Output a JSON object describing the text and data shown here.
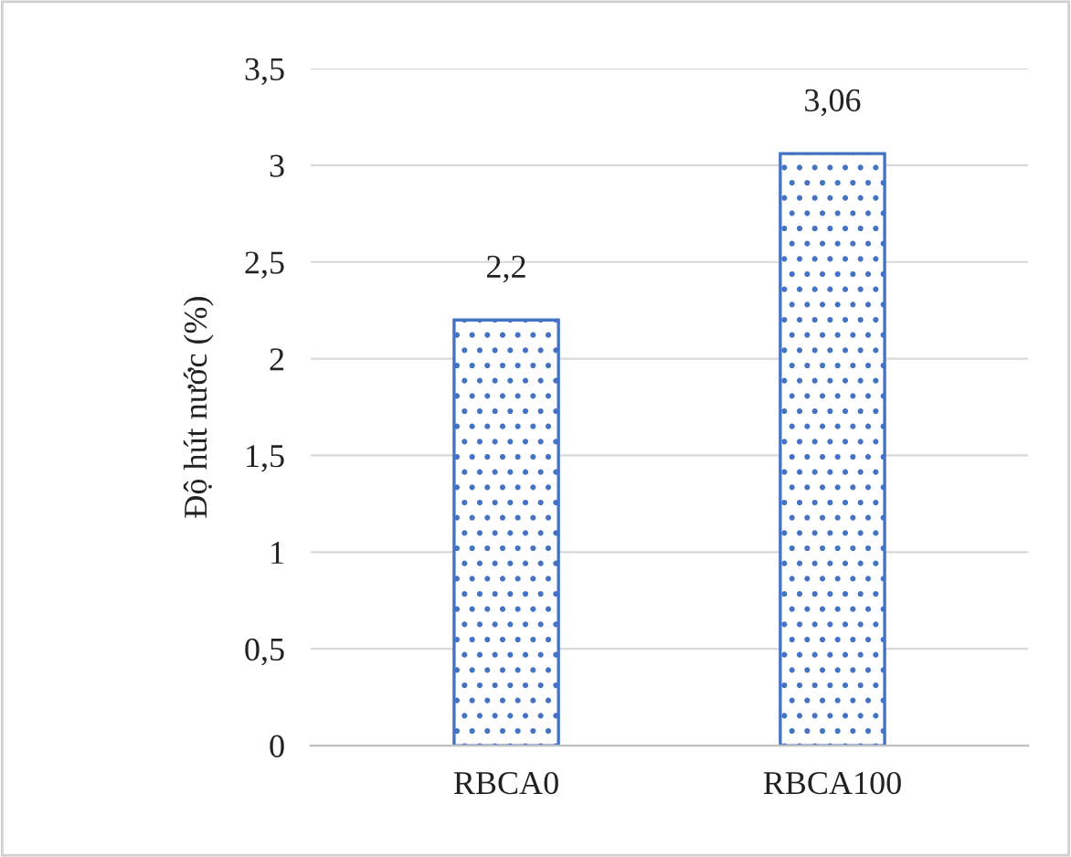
{
  "chart_data": {
    "type": "bar",
    "ylabel": "Độ hút nước (%)",
    "categories": [
      "RBCA0",
      "RBCA100"
    ],
    "values": [
      2.2,
      3.06
    ],
    "value_labels": [
      "2,2",
      "3,06"
    ],
    "color": "#4472c4",
    "ylim": [
      0,
      3.5
    ],
    "yticks": [
      0,
      {
        "value": 0.5,
        "label": "0,5"
      },
      1,
      {
        "value": 1.5,
        "label": "1,5"
      },
      2,
      {
        "value": 2.5,
        "label": "2,5"
      },
      3,
      {
        "value": 3.5,
        "label": "3,5"
      }
    ],
    "grid": "y"
  }
}
